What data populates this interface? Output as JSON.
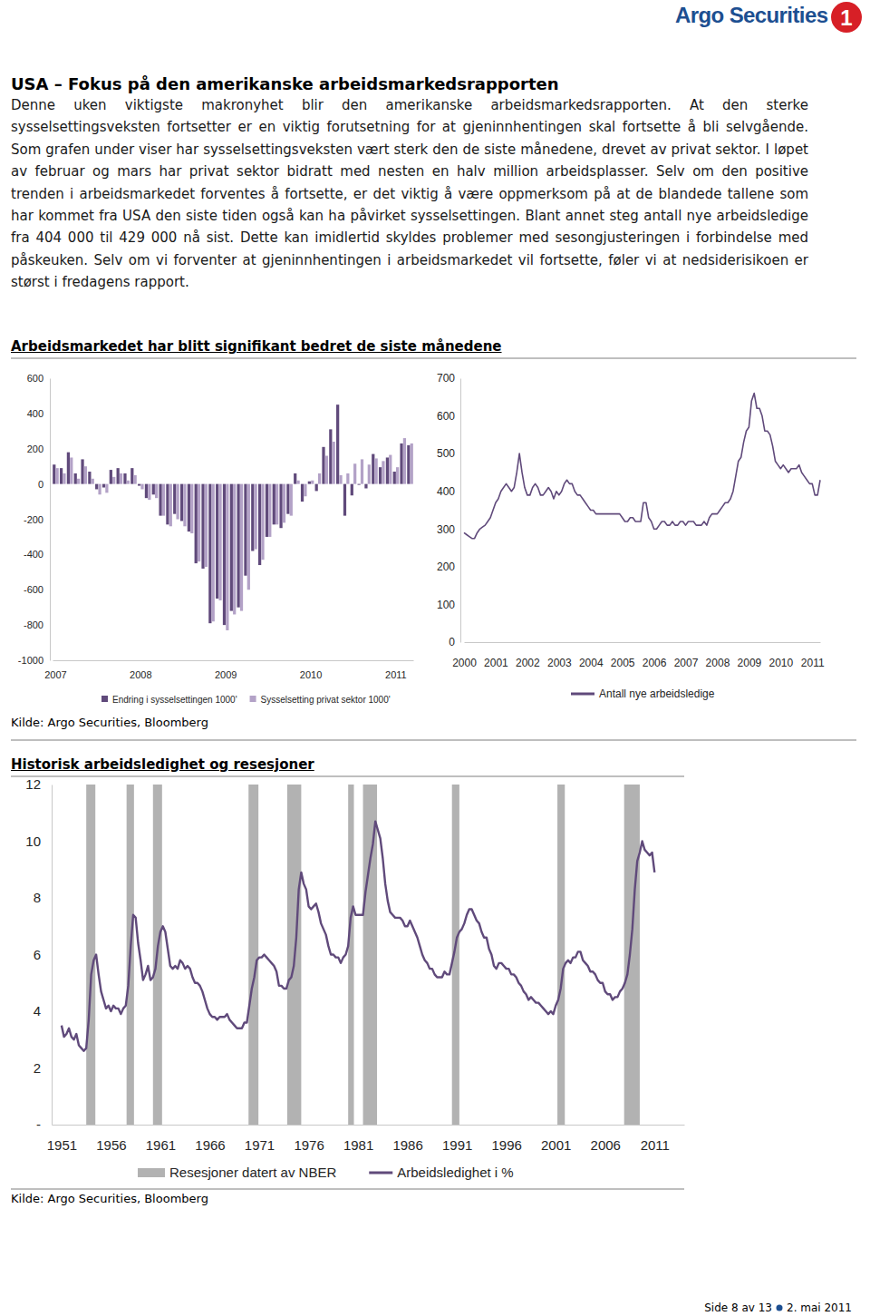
{
  "header": {
    "logo": "Argo Securities",
    "logo_mark": "1"
  },
  "title": "USA – Fokus på den amerikanske arbeidsmarkedsrapporten",
  "body": "Denne uken viktigste makronyhet blir den amerikanske arbeidsmarkedsrapporten. At den sterke sysselsettingsveksten fortsetter er en viktig forutsetning for at gjeninnhentingen skal fortsette å bli selvgående. Som grafen under viser har sysselsettingsveksten vært sterk den de siste månedene, drevet av privat sektor. I løpet av februar og mars har privat sektor bidratt med nesten en halv million arbeidsplasser. Selv om den positive trenden i arbeidsmarkedet forventes å fortsette, er det viktig å være oppmerksom på at de blandede tallene som har kommet fra USA den siste tiden også kan ha påvirket sysselsettingen. Blant annet steg antall nye arbeidsledige fra 404 000 til 429 000 nå sist. Dette kan imidlertid skyldes problemer med sesongjusteringen i forbindelse med påskeuken. Selv om vi forventer at gjeninnhentingen i arbeidsmarkedet vil fortsette, føler vi at nedsiderisikoen er størst i fredagens rapport.",
  "figures": [
    {
      "heading": "Arbeidsmarkedet har blitt signifikant bedret de siste månedene",
      "source": "Kilde: Argo Securities, Bloomberg"
    },
    {
      "heading": "Historisk arbeidsledighet og resesjoner",
      "source": "Kilde: Argo Securities, Bloomberg"
    }
  ],
  "chart_data": [
    {
      "type": "bar",
      "categories": [
        "2007",
        null,
        null,
        null,
        null,
        null,
        null,
        null,
        null,
        null,
        null,
        null,
        "2008",
        null,
        null,
        null,
        null,
        null,
        null,
        null,
        null,
        null,
        null,
        null,
        "2009",
        null,
        null,
        null,
        null,
        null,
        null,
        null,
        null,
        null,
        null,
        null,
        "2010",
        null,
        null,
        null,
        null,
        null,
        null,
        null,
        null,
        null,
        null,
        null,
        "2011",
        null,
        null
      ],
      "series": [
        {
          "name": "Endring i sysselsettingen 1000'",
          "color": "#604a7b",
          "values": [
            110,
            90,
            180,
            60,
            140,
            70,
            -30,
            -20,
            80,
            90,
            60,
            90,
            -10,
            -80,
            -60,
            -180,
            -230,
            -170,
            -210,
            -270,
            -450,
            -480,
            -790,
            -650,
            -800,
            -720,
            -700,
            -520,
            -380,
            -460,
            -300,
            -230,
            -250,
            -170,
            60,
            -100,
            15,
            -40,
            210,
            310,
            450,
            -180,
            -65,
            -5,
            -25,
            170,
            95,
            150,
            70,
            230,
            220
          ]
        },
        {
          "name": "Sysselsetting privat sektor 1000'",
          "color": "#b3a2c7",
          "values": [
            90,
            60,
            150,
            30,
            100,
            30,
            -60,
            -50,
            40,
            60,
            20,
            50,
            -30,
            -90,
            -80,
            -180,
            -240,
            -200,
            -240,
            -280,
            -440,
            -470,
            -780,
            -660,
            -830,
            -740,
            -720,
            -600,
            -370,
            -430,
            -300,
            -230,
            -220,
            -180,
            20,
            -70,
            20,
            60,
            160,
            240,
            50,
            60,
            115,
            140,
            110,
            145,
            130,
            165,
            95,
            260,
            230
          ]
        }
      ],
      "ylim": [
        -1000,
        600
      ],
      "yticks": [
        -1000,
        -800,
        -600,
        -400,
        -200,
        0,
        200,
        400,
        600
      ],
      "legend": "bottom"
    },
    {
      "type": "line",
      "categories": [
        "2000",
        null,
        null,
        null,
        null,
        null,
        null,
        null,
        null,
        null,
        null,
        null,
        "2001",
        null,
        null,
        null,
        null,
        null,
        null,
        null,
        null,
        null,
        null,
        null,
        "2002",
        null,
        null,
        null,
        null,
        null,
        null,
        null,
        null,
        null,
        null,
        null,
        "2003",
        null,
        null,
        null,
        null,
        null,
        null,
        null,
        null,
        null,
        null,
        null,
        "2004",
        null,
        null,
        null,
        null,
        null,
        null,
        null,
        null,
        null,
        null,
        null,
        "2005",
        null,
        null,
        null,
        null,
        null,
        null,
        null,
        null,
        null,
        null,
        null,
        "2006",
        null,
        null,
        null,
        null,
        null,
        null,
        null,
        null,
        null,
        null,
        null,
        "2007",
        null,
        null,
        null,
        null,
        null,
        null,
        null,
        null,
        null,
        null,
        null,
        "2008",
        null,
        null,
        null,
        null,
        null,
        null,
        null,
        null,
        null,
        null,
        null,
        "2009",
        null,
        null,
        null,
        null,
        null,
        null,
        null,
        null,
        null,
        null,
        null,
        "2010",
        null,
        null,
        null,
        null,
        null,
        null,
        null,
        null,
        null,
        null,
        null,
        "2011",
        null,
        null,
        null
      ],
      "series": [
        {
          "name": "Antall nye arbeidsledige",
          "color": "#604a7b",
          "values": [
            290,
            285,
            280,
            275,
            275,
            290,
            300,
            305,
            310,
            320,
            330,
            350,
            370,
            380,
            400,
            410,
            420,
            410,
            400,
            410,
            450,
            500,
            450,
            410,
            390,
            390,
            410,
            420,
            410,
            390,
            390,
            400,
            410,
            400,
            380,
            400,
            390,
            400,
            420,
            430,
            420,
            420,
            400,
            390,
            390,
            380,
            370,
            360,
            350,
            350,
            340,
            340,
            340,
            340,
            340,
            340,
            340,
            340,
            340,
            340,
            330,
            320,
            320,
            330,
            330,
            320,
            320,
            320,
            370,
            370,
            330,
            320,
            300,
            300,
            310,
            320,
            320,
            310,
            310,
            320,
            310,
            310,
            320,
            320,
            310,
            320,
            320,
            320,
            310,
            310,
            310,
            320,
            310,
            330,
            340,
            340,
            340,
            350,
            360,
            370,
            370,
            380,
            400,
            440,
            480,
            490,
            530,
            560,
            570,
            640,
            660,
            620,
            620,
            600,
            560,
            560,
            550,
            520,
            480,
            470,
            460,
            470,
            460,
            450,
            460,
            460,
            460,
            470,
            450,
            440,
            430,
            420,
            420,
            390,
            390,
            430
          ]
        }
      ],
      "ylim": [
        0,
        700
      ],
      "yticks": [
        0,
        100,
        200,
        300,
        400,
        500,
        600,
        700
      ],
      "legend": "bottom"
    },
    {
      "type": "line",
      "x": [
        1951,
        1951.25,
        1951.5,
        1951.75,
        1952,
        1952.25,
        1952.5,
        1952.75,
        1953,
        1953.25,
        1953.5,
        1953.75,
        1954,
        1954.25,
        1954.5,
        1954.75,
        1955,
        1955.25,
        1955.5,
        1955.75,
        1956,
        1956.25,
        1956.5,
        1956.75,
        1957,
        1957.25,
        1957.5,
        1957.75,
        1958,
        1958.25,
        1958.5,
        1958.75,
        1959,
        1959.25,
        1959.5,
        1959.75,
        1960,
        1960.25,
        1960.5,
        1960.75,
        1961,
        1961.25,
        1961.5,
        1961.75,
        1962,
        1962.25,
        1962.5,
        1962.75,
        1963,
        1963.25,
        1963.5,
        1963.75,
        1964,
        1964.25,
        1964.5,
        1964.75,
        1965,
        1965.25,
        1965.5,
        1965.75,
        1966,
        1966.25,
        1966.5,
        1966.75,
        1967,
        1967.25,
        1967.5,
        1967.75,
        1968,
        1968.25,
        1968.5,
        1968.75,
        1969,
        1969.25,
        1969.5,
        1969.75,
        1970,
        1970.25,
        1970.5,
        1970.75,
        1971,
        1971.25,
        1971.5,
        1971.75,
        1972,
        1972.25,
        1972.5,
        1972.75,
        1973,
        1973.25,
        1973.5,
        1973.75,
        1974,
        1974.25,
        1974.5,
        1974.75,
        1975,
        1975.25,
        1975.5,
        1975.75,
        1976,
        1976.25,
        1976.5,
        1976.75,
        1977,
        1977.25,
        1977.5,
        1977.75,
        1978,
        1978.25,
        1978.5,
        1978.75,
        1979,
        1979.25,
        1979.5,
        1979.75,
        1980,
        1980.25,
        1980.5,
        1980.75,
        1981,
        1981.25,
        1981.5,
        1981.75,
        1982,
        1982.25,
        1982.5,
        1982.75,
        1983,
        1983.25,
        1983.5,
        1983.75,
        1984,
        1984.25,
        1984.5,
        1984.75,
        1985,
        1985.25,
        1985.5,
        1985.75,
        1986,
        1986.25,
        1986.5,
        1986.75,
        1987,
        1987.25,
        1987.5,
        1987.75,
        1988,
        1988.25,
        1988.5,
        1988.75,
        1989,
        1989.25,
        1989.5,
        1989.75,
        1990,
        1990.25,
        1990.5,
        1990.75,
        1991,
        1991.25,
        1991.5,
        1991.75,
        1992,
        1992.25,
        1992.5,
        1992.75,
        1993,
        1993.25,
        1993.5,
        1993.75,
        1994,
        1994.25,
        1994.5,
        1994.75,
        1995,
        1995.25,
        1995.5,
        1995.75,
        1996,
        1996.25,
        1996.5,
        1996.75,
        1997,
        1997.25,
        1997.5,
        1997.75,
        1998,
        1998.25,
        1998.5,
        1998.75,
        1999,
        1999.25,
        1999.5,
        1999.75,
        2000,
        2000.25,
        2000.5,
        2000.75,
        2001,
        2001.25,
        2001.5,
        2001.75,
        2002,
        2002.25,
        2002.5,
        2002.75,
        2003,
        2003.25,
        2003.5,
        2003.75,
        2004,
        2004.25,
        2004.5,
        2004.75,
        2005,
        2005.25,
        2005.5,
        2005.75,
        2006,
        2006.25,
        2006.5,
        2006.75,
        2007,
        2007.25,
        2007.5,
        2007.75,
        2008,
        2008.25,
        2008.5,
        2008.75,
        2009,
        2009.25,
        2009.5,
        2009.75,
        2010,
        2010.25,
        2010.5,
        2010.75,
        2011
      ],
      "series": [
        {
          "name": "Resesjoner datert av NBER",
          "type": "span",
          "color": "#b2b2b2",
          "start": [
            1953.5,
            1957.58,
            1960.25,
            1969.92,
            1973.83,
            1980.0,
            1981.5,
            1990.5,
            2001.17,
            2007.92
          ],
          "end": [
            1954.42,
            1958.33,
            1961.17,
            1970.92,
            1975.25,
            1980.58,
            1982.92,
            1991.25,
            2001.92,
            2009.5
          ]
        },
        {
          "name": "Arbeidsledighet i %",
          "color": "#604a7b",
          "values": [
            3.5,
            3.1,
            3.2,
            3.4,
            3.1,
            3.0,
            3.2,
            2.8,
            2.7,
            2.6,
            2.7,
            3.7,
            5.3,
            5.8,
            6.0,
            5.3,
            4.7,
            4.4,
            4.1,
            4.2,
            4.0,
            4.2,
            4.1,
            4.1,
            3.9,
            4.1,
            4.2,
            4.9,
            6.3,
            7.4,
            7.3,
            6.4,
            5.8,
            5.1,
            5.3,
            5.6,
            5.1,
            5.2,
            5.5,
            6.3,
            6.8,
            7.0,
            6.8,
            6.2,
            5.6,
            5.5,
            5.6,
            5.5,
            5.8,
            5.7,
            5.5,
            5.6,
            5.5,
            5.2,
            5.0,
            5.0,
            4.9,
            4.7,
            4.4,
            4.1,
            3.9,
            3.8,
            3.8,
            3.7,
            3.8,
            3.8,
            3.8,
            3.9,
            3.7,
            3.6,
            3.5,
            3.4,
            3.4,
            3.4,
            3.6,
            3.6,
            4.2,
            4.8,
            5.2,
            5.8,
            5.9,
            5.9,
            6.0,
            5.9,
            5.8,
            5.7,
            5.6,
            5.4,
            4.9,
            4.9,
            4.8,
            4.8,
            5.1,
            5.2,
            5.6,
            6.6,
            8.3,
            8.9,
            8.5,
            8.3,
            7.7,
            7.6,
            7.7,
            7.8,
            7.5,
            7.1,
            6.9,
            6.7,
            6.3,
            6.0,
            6.0,
            5.9,
            5.9,
            5.7,
            5.9,
            6.0,
            6.3,
            7.3,
            7.7,
            7.4,
            7.4,
            7.4,
            7.4,
            8.2,
            8.8,
            9.4,
            9.9,
            10.7,
            10.4,
            10.1,
            9.4,
            8.5,
            7.9,
            7.5,
            7.4,
            7.3,
            7.3,
            7.3,
            7.2,
            7.0,
            7.0,
            7.2,
            7.0,
            6.8,
            6.6,
            6.3,
            6.0,
            5.8,
            5.7,
            5.5,
            5.5,
            5.3,
            5.2,
            5.2,
            5.2,
            5.4,
            5.3,
            5.3,
            5.7,
            6.1,
            6.6,
            6.8,
            6.9,
            7.1,
            7.4,
            7.6,
            7.6,
            7.4,
            7.2,
            7.1,
            6.8,
            6.6,
            6.6,
            6.2,
            6.0,
            5.6,
            5.5,
            5.7,
            5.7,
            5.6,
            5.5,
            5.5,
            5.3,
            5.3,
            5.2,
            5.0,
            4.9,
            4.7,
            4.6,
            4.4,
            4.5,
            4.4,
            4.3,
            4.3,
            4.2,
            4.1,
            4.0,
            3.9,
            4.0,
            3.9,
            4.2,
            4.4,
            4.8,
            5.5,
            5.7,
            5.8,
            5.7,
            5.9,
            5.9,
            6.1,
            6.1,
            5.8,
            5.7,
            5.6,
            5.4,
            5.4,
            5.3,
            5.1,
            5.0,
            5.0,
            4.7,
            4.6,
            4.6,
            4.4,
            4.5,
            4.5,
            4.7,
            4.8,
            5.0,
            5.3,
            6.0,
            6.9,
            8.3,
            9.3,
            9.6,
            10.0,
            9.7,
            9.6,
            9.5,
            9.6,
            8.9
          ]
        }
      ],
      "xlim": [
        1950,
        2014
      ],
      "xticks": [
        1951,
        1956,
        1961,
        1966,
        1971,
        1976,
        1981,
        1986,
        1991,
        1996,
        2001,
        2006,
        2011
      ],
      "ylim": [
        0,
        12
      ],
      "yticks": [
        {
          "value": 0,
          "label": "-"
        },
        2,
        4,
        6,
        8,
        10,
        12
      ],
      "legend": "bottom"
    }
  ],
  "footer": {
    "page": "Side 8 av 13",
    "date": "2. mai 2011"
  }
}
